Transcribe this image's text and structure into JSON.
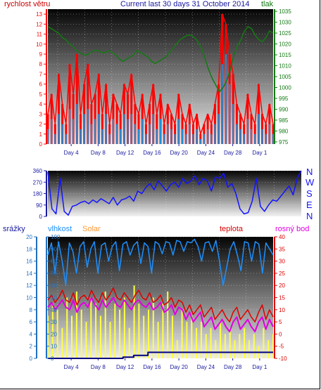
{
  "header": {
    "title": "Current last 30 days 31 October 2014",
    "wind_label": "rychlost větru",
    "pressure_label": "tlak"
  },
  "lower_header": {
    "rain_label": "srážky",
    "humidity_label": "vlhkost",
    "solar_label": "Solar",
    "temp_label": "teplota",
    "dew_label": "rosný bod"
  },
  "direction_labels": [
    "N",
    "W",
    "S",
    "E",
    "N"
  ],
  "colors": {
    "wind_gust": "#ff0000",
    "wind_avg": "#1e90d8",
    "pressure": "#137a13",
    "direction": "#1414ff",
    "rain": "#000080",
    "humidity": "#1e90ff",
    "solar": "#ffff40",
    "temperature": "#dd0000",
    "dew_point": "#e000e0",
    "left_axis_blue": "#2070c0",
    "title_blue": "#1a1aa0",
    "ticks_orange": "#ff9933"
  },
  "chart_data": [
    {
      "id": "wind",
      "type": "line",
      "x_ticks": [
        "Day 4",
        "Day 8",
        "Day 12",
        "Day 16",
        "Day 20",
        "Day 24",
        "Day 28",
        "Day 1"
      ],
      "y_left": {
        "ticks": [
          0,
          1,
          2,
          3,
          4,
          5,
          6,
          7,
          8,
          9,
          10,
          11,
          12,
          13
        ],
        "ylim": [
          0,
          13.5
        ]
      },
      "y_right": {
        "ticks": [
          975,
          980,
          985,
          990,
          995,
          1000,
          1005,
          1010,
          1015,
          1020,
          1025,
          1030,
          1035
        ],
        "ylim": [
          974,
          1036
        ]
      },
      "grid": true,
      "series": [
        {
          "name": "rychlost větru",
          "axis": "left",
          "style": "gust",
          "values": [
            3,
            5,
            2,
            7,
            4,
            2,
            8,
            5,
            9,
            3,
            6,
            8,
            4,
            5,
            7,
            3,
            6,
            2,
            5,
            4,
            3,
            6,
            5,
            7,
            4,
            3,
            5,
            2,
            4,
            6,
            3,
            5,
            2,
            4,
            3,
            2,
            5,
            3,
            2,
            4,
            2,
            3,
            1,
            2,
            3,
            2,
            4,
            6,
            13,
            12,
            9,
            7,
            4,
            3,
            2,
            5,
            3,
            2,
            6,
            3,
            2,
            4,
            2
          ]
        },
        {
          "name": "",
          "axis": "left",
          "style": "avg",
          "values": [
            1.5,
            2.5,
            1,
            3,
            2,
            1,
            3.5,
            2.5,
            4,
            1.5,
            3,
            3.5,
            2,
            2.5,
            3,
            1.5,
            3,
            1,
            2.5,
            2,
            1.5,
            3,
            2.5,
            3,
            2,
            1.5,
            2.5,
            1,
            2,
            3,
            1.5,
            2.5,
            1,
            2,
            1.5,
            1,
            2.5,
            1.5,
            1,
            2,
            1,
            1.5,
            0.5,
            1,
            1.5,
            1,
            2,
            3,
            8,
            9,
            6,
            4,
            2,
            1.5,
            1,
            2.5,
            1.5,
            1,
            3,
            1.5,
            1,
            2,
            1
          ]
        },
        {
          "name": "tlak",
          "axis": "right",
          "style": "pressure",
          "values": [
            1028,
            1027,
            1026,
            1025,
            1023,
            1022,
            1020,
            1019,
            1017,
            1016,
            1015,
            1015,
            1016,
            1017,
            1017,
            1016,
            1016,
            1017,
            1016,
            1015,
            1013,
            1012,
            1013,
            1014,
            1015,
            1017,
            1016,
            1015,
            1014,
            1012,
            1011,
            1012,
            1013,
            1014,
            1016,
            1018,
            1020,
            1022,
            1023,
            1024,
            1024,
            1023,
            1021,
            1018,
            1013,
            1008,
            1004,
            1001,
            998,
            1000,
            1003,
            1008,
            1015,
            1019,
            1022,
            1026,
            1028,
            1027,
            1024,
            1022,
            1021,
            1023,
            1026,
            1025
          ]
        }
      ]
    },
    {
      "id": "direction",
      "type": "line",
      "y_left": {
        "ticks": [
          0,
          90,
          180,
          270,
          360
        ],
        "ylim": [
          0,
          360
        ]
      },
      "grid": true,
      "series": [
        {
          "name": "",
          "values": [
            350,
            60,
            20,
            300,
            40,
            10,
            80,
            90,
            110,
            120,
            100,
            130,
            110,
            140,
            120,
            100,
            150,
            90,
            130,
            140,
            160,
            120,
            200,
            180,
            230,
            260,
            210,
            280,
            240,
            200,
            250,
            270,
            230,
            300,
            260,
            280,
            320,
            250,
            300,
            280,
            200,
            310,
            300,
            340,
            230,
            260,
            180,
            60,
            20,
            30,
            120,
            300,
            80,
            40,
            90,
            130,
            120,
            160,
            200,
            240,
            170,
            300,
            360
          ]
        }
      ]
    },
    {
      "id": "climate",
      "type": "line",
      "x_ticks": [
        "Day 4",
        "Day 8",
        "Day 12",
        "Day 16",
        "Day 20",
        "Day 24",
        "Day 28",
        "Day 1"
      ],
      "y_left": {
        "ticks": [
          0,
          2,
          4,
          6,
          8,
          10,
          12,
          14,
          16,
          18,
          20
        ],
        "ylim": [
          0,
          20
        ]
      },
      "y_humidity": {
        "ticks": [
          0,
          10,
          20,
          30,
          40,
          50,
          60,
          70,
          80,
          90,
          100
        ],
        "ylim": [
          0,
          100
        ]
      },
      "y_right": {
        "ticks": [
          -10,
          -5,
          0,
          5,
          10,
          15,
          20,
          25,
          30,
          35,
          40
        ],
        "ylim": [
          -10,
          40
        ]
      },
      "grid": true,
      "series": [
        {
          "name": "srážky",
          "axis": "left",
          "style": "rain",
          "values": [
            0,
            0,
            0,
            0,
            0,
            0,
            0,
            0,
            0,
            0,
            0,
            0,
            0,
            0,
            0,
            0,
            0,
            0,
            0,
            0,
            0,
            0.2,
            0.2,
            0.2,
            0.5,
            0.5,
            0.5,
            0.5,
            1,
            1,
            1,
            1,
            1,
            1,
            1,
            1,
            1,
            1,
            1,
            1,
            1,
            1,
            1,
            1,
            1,
            1,
            1,
            1,
            1,
            1,
            1,
            1,
            1,
            1,
            1,
            1,
            1,
            1,
            1,
            1,
            1,
            1,
            1,
            1
          ]
        },
        {
          "name": "vlhkost",
          "axis": "humidity",
          "style": "humidity",
          "values": [
            85,
            95,
            70,
            96,
            80,
            60,
            95,
            88,
            70,
            92,
            96,
            75,
            90,
            96,
            70,
            93,
            95,
            80,
            92,
            96,
            72,
            94,
            96,
            85,
            93,
            96,
            78,
            95,
            92,
            70,
            96,
            94,
            86,
            96,
            95,
            85,
            97,
            96,
            88,
            96,
            95,
            98,
            92,
            80,
            95,
            96,
            88,
            97,
            80,
            60,
            75,
            90,
            96,
            85,
            72,
            96,
            95,
            80,
            96,
            94,
            70,
            95,
            90,
            85
          ]
        },
        {
          "name": "Solar",
          "axis": "left",
          "style": "solar",
          "values": [
            7,
            9,
            8,
            5,
            10,
            7,
            11,
            8,
            6,
            10,
            9,
            7,
            11,
            6,
            9,
            8,
            10,
            5,
            12,
            9,
            7,
            8,
            10,
            6,
            9,
            11,
            7,
            3,
            8,
            6,
            7,
            5,
            6,
            4,
            5,
            3,
            6,
            4,
            5,
            3,
            4,
            5,
            3,
            4,
            2,
            5,
            3,
            4
          ]
        },
        {
          "name": "teplota",
          "axis": "right",
          "style": "temp",
          "values": [
            14,
            16,
            13,
            15,
            18,
            14,
            13,
            17,
            12,
            15,
            16,
            14,
            18,
            15,
            13,
            17,
            14,
            16,
            19,
            15,
            14,
            17,
            15,
            13,
            16,
            18,
            15,
            14,
            17,
            13,
            14,
            16,
            12,
            13,
            15,
            11,
            14,
            13,
            9,
            12,
            8,
            10,
            12,
            7,
            9,
            11,
            6,
            8,
            10,
            7,
            5,
            9,
            11,
            6,
            8,
            10,
            7,
            5,
            9,
            12,
            6,
            10,
            7
          ]
        },
        {
          "name": "rosný bod",
          "axis": "right",
          "style": "dew",
          "values": [
            11,
            13,
            10,
            12,
            14,
            11,
            10,
            14,
            9,
            12,
            13,
            11,
            15,
            12,
            10,
            14,
            11,
            13,
            15,
            12,
            11,
            14,
            12,
            10,
            13,
            14,
            12,
            11,
            13,
            10,
            11,
            13,
            9,
            10,
            12,
            8,
            11,
            10,
            6,
            9,
            5,
            7,
            9,
            3,
            5,
            7,
            2,
            4,
            6,
            3,
            1,
            5,
            7,
            2,
            4,
            6,
            3,
            1,
            5,
            7,
            2,
            6,
            3
          ]
        }
      ]
    }
  ]
}
